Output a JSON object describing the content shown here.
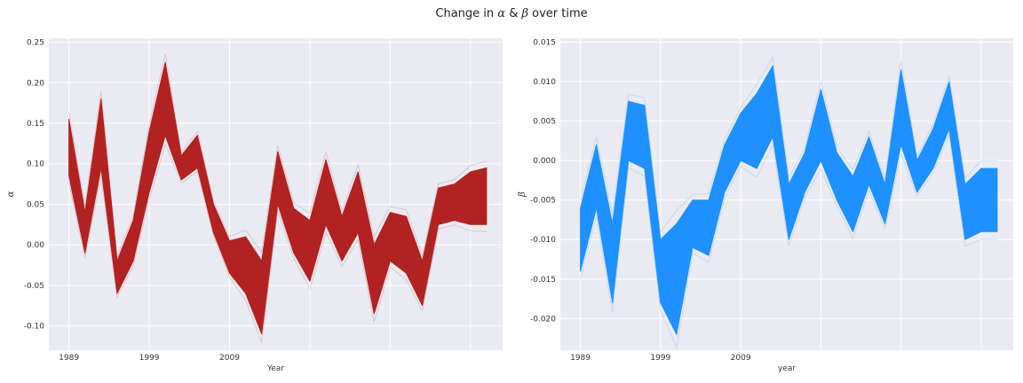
{
  "figure": {
    "title_prefix": "Change in ",
    "title_alpha": "α",
    "title_amp": " & ",
    "title_beta": "β",
    "title_suffix": " over time"
  },
  "chart_data": [
    {
      "type": "area",
      "name": "alpha",
      "xlabel": "Year",
      "ylabel": "α",
      "color": "#b22222",
      "xlim": [
        1986.5,
        2043
      ],
      "ylim": [
        -0.13,
        0.255
      ],
      "x_ticks": [
        1989,
        1999,
        2009
      ],
      "x_tick_labels": [
        "1989",
        "1999",
        "2009"
      ],
      "x_grid": [
        1989,
        1999,
        2009,
        2019,
        2029,
        2039
      ],
      "y_ticks": [
        -0.1,
        -0.05,
        0.0,
        0.05,
        0.1,
        0.15,
        0.2,
        0.25
      ],
      "y_tick_labels": [
        "-0.10",
        "-0.05",
        "0.00",
        "0.05",
        "0.10",
        "0.15",
        "0.20",
        "0.25"
      ],
      "x": [
        1989,
        1991,
        1993,
        1995,
        1997,
        1999,
        2001,
        2003,
        2005,
        2007,
        2009,
        2011,
        2013,
        2015,
        2017,
        2019,
        2021,
        2023,
        2025,
        2027,
        2029,
        2031,
        2033,
        2035,
        2037,
        2039,
        2041
      ],
      "upper": [
        0.155,
        0.04,
        0.18,
        -0.02,
        0.03,
        0.14,
        0.225,
        0.11,
        0.135,
        0.05,
        0.005,
        0.01,
        -0.02,
        0.115,
        0.045,
        0.03,
        0.105,
        0.035,
        0.09,
        0.0,
        0.04,
        0.035,
        -0.02,
        0.07,
        0.075,
        0.09,
        0.095
      ],
      "lower": [
        0.085,
        -0.01,
        0.095,
        -0.06,
        -0.02,
        0.065,
        0.135,
        0.08,
        0.095,
        0.015,
        -0.035,
        -0.06,
        -0.11,
        0.05,
        -0.01,
        -0.045,
        0.025,
        -0.02,
        0.015,
        -0.085,
        -0.02,
        -0.035,
        -0.075,
        0.025,
        0.03,
        0.025,
        0.025
      ]
    },
    {
      "type": "area",
      "name": "beta",
      "xlabel": "year",
      "ylabel": "β",
      "color": "#1e90ff",
      "xlim": [
        1986.5,
        2043
      ],
      "ylim": [
        -0.024,
        0.0155
      ],
      "x_ticks": [
        1989,
        1999,
        2009
      ],
      "x_tick_labels": [
        "1989",
        "1999",
        "2009"
      ],
      "x_grid": [
        1989,
        1999,
        2009,
        2019,
        2029,
        2039
      ],
      "y_ticks": [
        -0.02,
        -0.015,
        -0.01,
        -0.005,
        0.0,
        0.005,
        0.01,
        0.015
      ],
      "y_tick_labels": [
        "-0.020",
        "-0.015",
        "-0.010",
        "-0.005",
        "0.000",
        "0.005",
        "0.010",
        "0.015"
      ],
      "x": [
        1989,
        1991,
        1993,
        1995,
        1997,
        1999,
        2001,
        2003,
        2005,
        2007,
        2009,
        2011,
        2013,
        2015,
        2017,
        2019,
        2021,
        2023,
        2025,
        2027,
        2029,
        2031,
        2033,
        2035,
        2037,
        2039,
        2041
      ],
      "upper": [
        -0.006,
        0.002,
        -0.008,
        0.0075,
        0.007,
        -0.01,
        -0.008,
        -0.005,
        -0.005,
        0.002,
        0.006,
        0.0085,
        0.012,
        -0.003,
        0.001,
        0.009,
        0.001,
        -0.002,
        0.003,
        -0.003,
        0.0115,
        0.0,
        0.004,
        0.01,
        -0.003,
        -0.001,
        -0.001
      ],
      "lower": [
        -0.014,
        -0.006,
        -0.018,
        0.0,
        -0.001,
        -0.018,
        -0.022,
        -0.011,
        -0.012,
        -0.004,
        0.0,
        -0.001,
        0.003,
        -0.01,
        -0.004,
        0.0,
        -0.005,
        -0.009,
        -0.003,
        -0.008,
        0.002,
        -0.004,
        -0.001,
        0.004,
        -0.01,
        -0.009,
        -0.009
      ]
    }
  ]
}
